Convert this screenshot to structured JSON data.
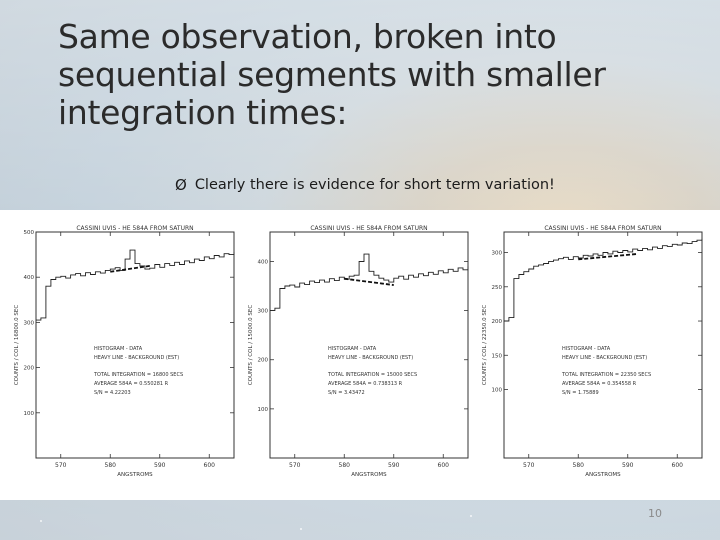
{
  "slide": {
    "title_lines": [
      "Same observation, broken into",
      "sequential segments with smaller",
      "integration times:"
    ],
    "bullet_arrow": "Ø",
    "bullet": "Clearly there is evidence for short term variation!",
    "page_number": "10"
  },
  "chart_data": [
    {
      "type": "line",
      "title": "CASSINI UVIS  -  HE 584A FROM SATURN",
      "xlabel": "ANGSTROMS",
      "ylabel": "COUNTS / COL / 16800.0 SEC",
      "xlim": [
        565,
        605
      ],
      "ylim": [
        0,
        500
      ],
      "x_ticks": [
        570,
        580,
        590,
        600
      ],
      "y_ticks": [
        100,
        200,
        300,
        400,
        500
      ],
      "series": [
        {
          "name": "HISTOGRAM - DATA",
          "x": [
            565,
            566,
            567,
            568,
            569,
            570,
            571,
            572,
            573,
            574,
            575,
            576,
            577,
            578,
            579,
            580,
            581,
            582,
            583,
            584,
            585,
            586,
            587,
            588,
            589,
            590,
            591,
            592,
            593,
            594,
            595,
            596,
            597,
            598,
            599,
            600,
            601,
            602,
            603,
            604,
            605
          ],
          "y": [
            305,
            310,
            380,
            395,
            400,
            402,
            398,
            405,
            408,
            403,
            410,
            406,
            412,
            409,
            415,
            418,
            421,
            415,
            440,
            460,
            430,
            425,
            418,
            420,
            428,
            422,
            430,
            426,
            433,
            428,
            436,
            432,
            440,
            437,
            445,
            441,
            448,
            445,
            452,
            450,
            456
          ]
        },
        {
          "name": "HEAVY LINE - BACKGROUND (EST)",
          "x": [
            580,
            588
          ],
          "y": [
            412,
            425
          ]
        }
      ],
      "legend": [
        "HISTOGRAM  -  DATA",
        "HEAVY LINE  -  BACKGROUND (EST)"
      ],
      "annotations": [
        "TOTAL INTEGRATION  =  16800 SECS",
        "AVERAGE 584A  =  0.550281  R",
        "S/N  =  4.22203"
      ]
    },
    {
      "type": "line",
      "title": "CASSINI UVIS  -  HE 584A FROM SATURN",
      "xlabel": "ANGSTROMS",
      "ylabel": "COUNTS / COL / 15000.0 SEC",
      "xlim": [
        565,
        605
      ],
      "ylim": [
        0,
        460
      ],
      "x_ticks": [
        570,
        580,
        590,
        600
      ],
      "y_ticks": [
        100,
        200,
        300,
        400
      ],
      "series": [
        {
          "name": "HISTOGRAM - DATA",
          "x": [
            565,
            566,
            567,
            568,
            569,
            570,
            571,
            572,
            573,
            574,
            575,
            576,
            577,
            578,
            579,
            580,
            581,
            582,
            583,
            584,
            585,
            586,
            587,
            588,
            589,
            590,
            591,
            592,
            593,
            594,
            595,
            596,
            597,
            598,
            599,
            600,
            601,
            602,
            603,
            604,
            605
          ],
          "y": [
            300,
            305,
            345,
            350,
            352,
            348,
            356,
            353,
            360,
            357,
            362,
            358,
            365,
            361,
            368,
            364,
            370,
            372,
            400,
            415,
            380,
            372,
            366,
            362,
            358,
            366,
            370,
            364,
            372,
            368,
            375,
            371,
            378,
            374,
            381,
            377,
            384,
            380,
            387,
            383,
            390
          ]
        },
        {
          "name": "HEAVY LINE - BACKGROUND (EST)",
          "x": [
            580,
            590
          ],
          "y": [
            365,
            352
          ]
        }
      ],
      "legend": [
        "HISTOGRAM  -  DATA",
        "HEAVY LINE  -  BACKGROUND (EST)"
      ],
      "annotations": [
        "TOTAL INTEGRATION  =  15000 SECS",
        "AVERAGE 584A  =  0.738313  R",
        "S/N  =  3.43472"
      ]
    },
    {
      "type": "line",
      "title": "CASSINI UVIS  -  HE 584A FROM SATURN",
      "xlabel": "ANGSTROMS",
      "ylabel": "COUNTS / COL / 22350.0 SEC",
      "xlim": [
        565,
        605
      ],
      "ylim": [
        0,
        330
      ],
      "x_ticks": [
        570,
        580,
        590,
        600
      ],
      "y_ticks": [
        100,
        150,
        200,
        250,
        300
      ],
      "series": [
        {
          "name": "HISTOGRAM - DATA",
          "x": [
            565,
            566,
            567,
            568,
            569,
            570,
            571,
            572,
            573,
            574,
            575,
            576,
            577,
            578,
            579,
            580,
            581,
            582,
            583,
            584,
            585,
            586,
            587,
            588,
            589,
            590,
            591,
            592,
            593,
            594,
            595,
            596,
            597,
            598,
            599,
            600,
            601,
            602,
            603,
            604,
            605
          ],
          "y": [
            200,
            205,
            262,
            268,
            272,
            276,
            280,
            282,
            284,
            287,
            289,
            291,
            293,
            290,
            294,
            292,
            296,
            295,
            298,
            296,
            300,
            298,
            302,
            300,
            303,
            301,
            305,
            303,
            306,
            304,
            308,
            306,
            310,
            309,
            312,
            311,
            314,
            313,
            316,
            318,
            320
          ]
        },
        {
          "name": "HEAVY LINE - BACKGROUND (EST)",
          "x": [
            580,
            592
          ],
          "y": [
            290,
            298
          ]
        }
      ],
      "legend": [
        "HISTOGRAM  -  DATA",
        "HEAVY LINE  -  BACKGROUND (EST)"
      ],
      "annotations": [
        "TOTAL INTEGRATION  =  22350 SECS",
        "AVERAGE 584A  =  0.354558  R",
        "S/N  =  1.75889"
      ]
    }
  ]
}
